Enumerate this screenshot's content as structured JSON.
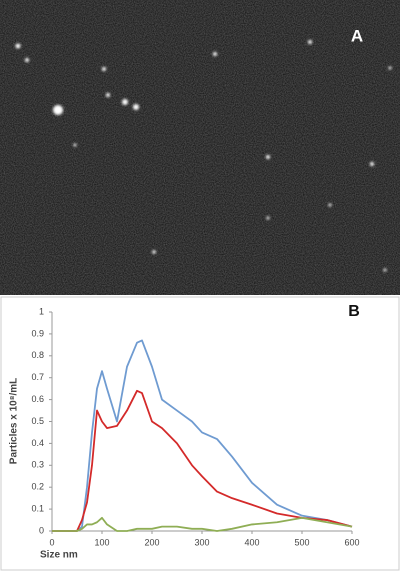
{
  "panel_labels": [
    "A",
    "B"
  ],
  "chart_data": {
    "type": "line",
    "x_label": "Size nm",
    "y_label": "Particles x 10⁸/mL",
    "x": [
      0,
      50,
      60,
      70,
      80,
      90,
      100,
      110,
      130,
      150,
      170,
      180,
      200,
      220,
      250,
      280,
      300,
      330,
      360,
      400,
      450,
      500,
      550,
      600
    ],
    "series": [
      {
        "color": "#6f9bd1",
        "values": [
          0,
          0,
          0.02,
          0.2,
          0.45,
          0.65,
          0.73,
          0.65,
          0.5,
          0.75,
          0.86,
          0.87,
          0.75,
          0.6,
          0.55,
          0.5,
          0.45,
          0.42,
          0.34,
          0.22,
          0.12,
          0.07,
          0.05,
          0.02
        ]
      },
      {
        "color": "#d42a2a",
        "values": [
          0,
          0,
          0.05,
          0.13,
          0.3,
          0.55,
          0.5,
          0.47,
          0.48,
          0.55,
          0.64,
          0.63,
          0.5,
          0.47,
          0.4,
          0.3,
          0.25,
          0.18,
          0.15,
          0.12,
          0.08,
          0.06,
          0.05,
          0.02
        ]
      },
      {
        "color": "#8fae55",
        "values": [
          0,
          0,
          0.01,
          0.03,
          0.03,
          0.04,
          0.06,
          0.03,
          0,
          0,
          0.01,
          0.01,
          0.01,
          0.02,
          0.02,
          0.01,
          0.01,
          0,
          0.01,
          0.03,
          0.04,
          0.06,
          0.04,
          0.02
        ]
      }
    ],
    "xlim": [
      0,
      600
    ],
    "xticks": [
      0,
      100,
      200,
      300,
      400,
      500,
      600
    ],
    "ylim": [
      0,
      1
    ],
    "yticks": [
      0,
      0.1,
      0.2,
      0.3,
      0.4,
      0.5,
      0.6,
      0.7,
      0.8,
      0.9,
      1
    ]
  }
}
